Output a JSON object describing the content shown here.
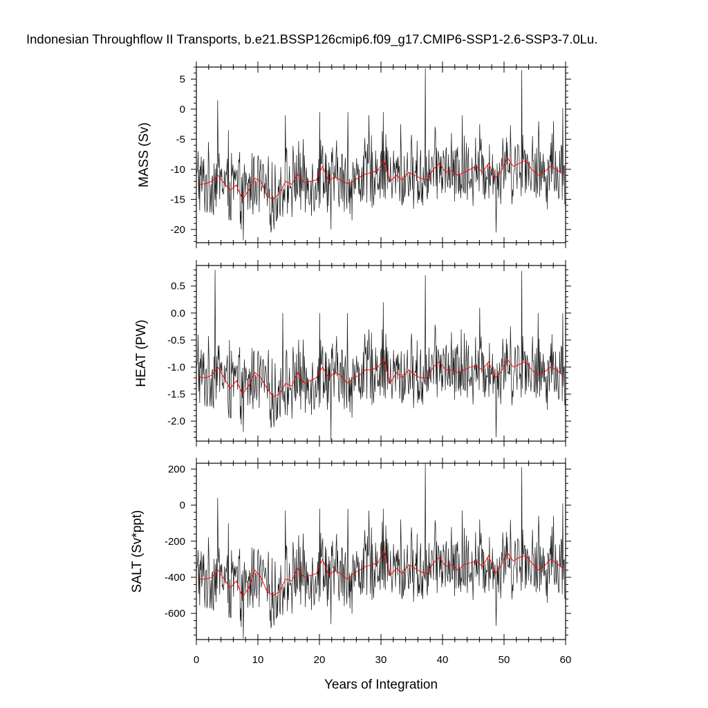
{
  "title": "Indonesian Throughflow II Transports, b.e21.BSSP126cmip6.f09_g17.CMIP6-SSP1-2.6-SSP3-7.0Lu.",
  "xlabel": "Years of Integration",
  "colors": {
    "monthly": "#1a1a1a",
    "annual": "#ff0000",
    "frame": "#000000"
  },
  "chart_data": [
    {
      "type": "line",
      "ylabel": "MASS (Sv)",
      "xlim": [
        0,
        60
      ],
      "ylim": [
        -22.2,
        7.0
      ],
      "xticks": [
        0,
        10,
        20,
        30,
        40,
        50,
        60
      ],
      "yticks": [
        -20,
        -15,
        -10,
        -5,
        0,
        5
      ],
      "ytick_labels": [
        "-20",
        "-15",
        "-10",
        "-5",
        "0",
        "5"
      ],
      "grid": false,
      "series": [
        {
          "role": "monthly",
          "x": [
            0.25,
            3.4,
            5.2,
            7.6,
            11.2,
            14.4,
            20.0,
            21.8,
            24.6,
            28.0,
            30.3,
            33.2,
            37.2,
            37.5,
            43.2,
            46.0,
            48.7,
            52.8,
            55.6,
            58.0,
            59.5,
            59.9
          ],
          "y": [
            -7.0,
            1.5,
            -3.5,
            -21.8,
            -14.0,
            -1.0,
            -0.5,
            -20.0,
            -0.5,
            -1.0,
            -0.5,
            -2.5,
            6.8,
            -15.0,
            -1.0,
            -2.5,
            -20.5,
            6.5,
            -2.0,
            -2.0,
            0.2,
            -15.5
          ]
        },
        {
          "role": "annual",
          "x": [
            0.5,
            1.5,
            2.5,
            3.5,
            4.5,
            5.5,
            6.5,
            7.5,
            8.5,
            9.5,
            10.5,
            11.5,
            12.5,
            13.5,
            14.5,
            15.5,
            16.5,
            17.5,
            18.5,
            19.5,
            20.5,
            21.5,
            22.5,
            23.5,
            24.5,
            25.5,
            26.5,
            27.5,
            28.5,
            29.5,
            30.5,
            31.5,
            32.5,
            33.5,
            34.5,
            35.5,
            36.5,
            37.5,
            38.5,
            39.5,
            40.5,
            41.5,
            42.5,
            43.5,
            44.5,
            45.5,
            46.5,
            47.5,
            48.5,
            49.5,
            50.5,
            51.5,
            52.5,
            53.5,
            54.5,
            55.5,
            56.5,
            57.5,
            58.5,
            59.5
          ],
          "y": [
            -12.5,
            -12.4,
            -12.0,
            -11.0,
            -12.3,
            -13.5,
            -12.6,
            -15.0,
            -13.5,
            -11.5,
            -12.0,
            -14.5,
            -15.0,
            -14.0,
            -12.0,
            -12.5,
            -10.8,
            -12.2,
            -12.0,
            -11.8,
            -9.5,
            -12.0,
            -11.2,
            -11.8,
            -12.4,
            -12.0,
            -11.3,
            -10.8,
            -10.5,
            -10.2,
            -8.5,
            -12.0,
            -11.0,
            -11.8,
            -10.5,
            -11.0,
            -11.5,
            -11.8,
            -10.0,
            -9.0,
            -10.5,
            -10.2,
            -11.0,
            -10.5,
            -10.0,
            -9.5,
            -10.5,
            -9.0,
            -11.5,
            -10.5,
            -8.0,
            -9.5,
            -9.0,
            -8.5,
            -10.0,
            -11.0,
            -10.5,
            -9.5,
            -10.0,
            -10.8
          ]
        }
      ]
    },
    {
      "type": "line",
      "ylabel": "HEAT (PW)",
      "xlim": [
        0,
        60
      ],
      "ylim": [
        -2.37,
        0.88
      ],
      "xticks": [
        0,
        10,
        20,
        30,
        40,
        50,
        60
      ],
      "yticks": [
        -2.0,
        -1.5,
        -1.0,
        -0.5,
        0.0,
        0.5
      ],
      "ytick_labels": [
        "-2.0",
        "-1.5",
        "-1.0",
        "-0.5",
        "0.0",
        "0.5"
      ],
      "grid": false,
      "series": [
        {
          "role": "monthly",
          "x": [
            0.25,
            3.0,
            3.4,
            5.3,
            7.6,
            14.0,
            20.0,
            21.8,
            24.5,
            28.0,
            30.3,
            37.2,
            37.5,
            43.0,
            46.0,
            48.7,
            52.8,
            55.5,
            59.5,
            59.9
          ],
          "y": [
            -0.4,
            0.8,
            -1.0,
            -0.5,
            -2.2,
            0.0,
            0.0,
            -2.35,
            0.0,
            -0.3,
            0.2,
            0.7,
            -1.3,
            -0.3,
            0.1,
            -2.3,
            0.78,
            0.0,
            0.0,
            -1.6
          ]
        },
        {
          "role": "annual",
          "x": [
            0.5,
            1.5,
            2.5,
            3.5,
            4.5,
            5.5,
            6.5,
            7.5,
            8.5,
            9.5,
            10.5,
            11.5,
            12.5,
            13.5,
            14.5,
            15.5,
            16.5,
            17.5,
            18.5,
            19.5,
            20.5,
            21.5,
            22.5,
            23.5,
            24.5,
            25.5,
            26.5,
            27.5,
            28.5,
            29.5,
            30.5,
            31.5,
            32.5,
            33.5,
            34.5,
            35.5,
            36.5,
            37.5,
            38.5,
            39.5,
            40.5,
            41.5,
            42.5,
            43.5,
            44.5,
            45.5,
            46.5,
            47.5,
            48.5,
            49.5,
            50.5,
            51.5,
            52.5,
            53.5,
            54.5,
            55.5,
            56.5,
            57.5,
            58.5,
            59.5
          ],
          "y": [
            -1.18,
            -1.2,
            -1.15,
            -1.0,
            -1.2,
            -1.4,
            -1.25,
            -1.5,
            -1.35,
            -1.1,
            -1.2,
            -1.4,
            -1.55,
            -1.5,
            -1.3,
            -1.35,
            -1.1,
            -1.3,
            -1.25,
            -1.2,
            -1.0,
            -1.2,
            -1.1,
            -1.15,
            -1.3,
            -1.2,
            -1.15,
            -1.05,
            -1.05,
            -1.0,
            -0.85,
            -1.3,
            -1.1,
            -1.2,
            -1.05,
            -1.15,
            -1.2,
            -1.2,
            -1.0,
            -0.9,
            -1.05,
            -1.05,
            -1.1,
            -1.05,
            -1.0,
            -0.98,
            -1.05,
            -0.9,
            -1.2,
            -1.1,
            -0.85,
            -1.0,
            -0.95,
            -0.9,
            -1.05,
            -1.15,
            -1.1,
            -1.0,
            -1.05,
            -1.15
          ]
        }
      ]
    },
    {
      "type": "line",
      "ylabel": "SALT (Sv*ppt)",
      "xlim": [
        0,
        60
      ],
      "ylim": [
        -745,
        232
      ],
      "xticks": [
        0,
        10,
        20,
        30,
        40,
        50,
        60
      ],
      "yticks": [
        -600,
        -400,
        -200,
        0,
        200
      ],
      "ytick_labels": [
        "-600",
        "-400",
        "-200",
        "0",
        "200"
      ],
      "grid": false,
      "series": [
        {
          "role": "monthly",
          "x": [
            0.25,
            3.4,
            5.2,
            7.6,
            11.0,
            14.4,
            20.0,
            21.8,
            24.6,
            28.0,
            30.3,
            33.2,
            37.2,
            37.5,
            43.2,
            46.0,
            48.7,
            52.8,
            55.6,
            58.0,
            59.5,
            59.9
          ],
          "y": [
            -250,
            40,
            -100,
            -740,
            -380,
            -30,
            -20,
            -660,
            -20,
            -30,
            -20,
            -80,
            230,
            -500,
            -30,
            -80,
            -670,
            210,
            -60,
            -60,
            10,
            -510
          ]
        },
        {
          "role": "annual",
          "x": [
            0.5,
            1.5,
            2.5,
            3.5,
            4.5,
            5.5,
            6.5,
            7.5,
            8.5,
            9.5,
            10.5,
            11.5,
            12.5,
            13.5,
            14.5,
            15.5,
            16.5,
            17.5,
            18.5,
            19.5,
            20.5,
            21.5,
            22.5,
            23.5,
            24.5,
            25.5,
            26.5,
            27.5,
            28.5,
            29.5,
            30.5,
            31.5,
            32.5,
            33.5,
            34.5,
            35.5,
            36.5,
            37.5,
            38.5,
            39.5,
            40.5,
            41.5,
            42.5,
            43.5,
            44.5,
            45.5,
            46.5,
            47.5,
            48.5,
            49.5,
            50.5,
            51.5,
            52.5,
            53.5,
            54.5,
            55.5,
            56.5,
            57.5,
            58.5,
            59.5
          ],
          "y": [
            -410,
            -410,
            -400,
            -360,
            -410,
            -460,
            -420,
            -510,
            -460,
            -360,
            -400,
            -480,
            -500,
            -480,
            -410,
            -420,
            -350,
            -400,
            -390,
            -380,
            -300,
            -390,
            -360,
            -380,
            -410,
            -380,
            -360,
            -340,
            -330,
            -320,
            -250,
            -390,
            -350,
            -380,
            -330,
            -350,
            -370,
            -380,
            -320,
            -290,
            -340,
            -330,
            -360,
            -330,
            -320,
            -310,
            -340,
            -280,
            -380,
            -340,
            -260,
            -310,
            -290,
            -280,
            -320,
            -360,
            -340,
            -300,
            -320,
            -350
          ]
        }
      ]
    }
  ]
}
